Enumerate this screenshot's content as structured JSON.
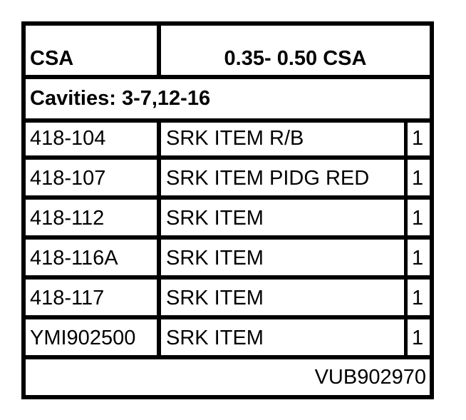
{
  "header": {
    "left": "CSA",
    "right": "0.35- 0.50 CSA"
  },
  "cavities": "Cavities: 3-7,12-16",
  "rows": [
    {
      "part": "418-104",
      "desc": "SRK ITEM R/B",
      "qty": "1"
    },
    {
      "part": "418-107",
      "desc": "SRK ITEM PIDG RED",
      "qty": "1"
    },
    {
      "part": "418-112",
      "desc": "SRK ITEM",
      "qty": "1"
    },
    {
      "part": "418-116A",
      "desc": "SRK ITEM",
      "qty": "1"
    },
    {
      "part": "418-117",
      "desc": "SRK ITEM",
      "qty": "1"
    },
    {
      "part": "YMI902500",
      "desc": "SRK ITEM",
      "qty": "1"
    }
  ],
  "footer": "VUB902970"
}
